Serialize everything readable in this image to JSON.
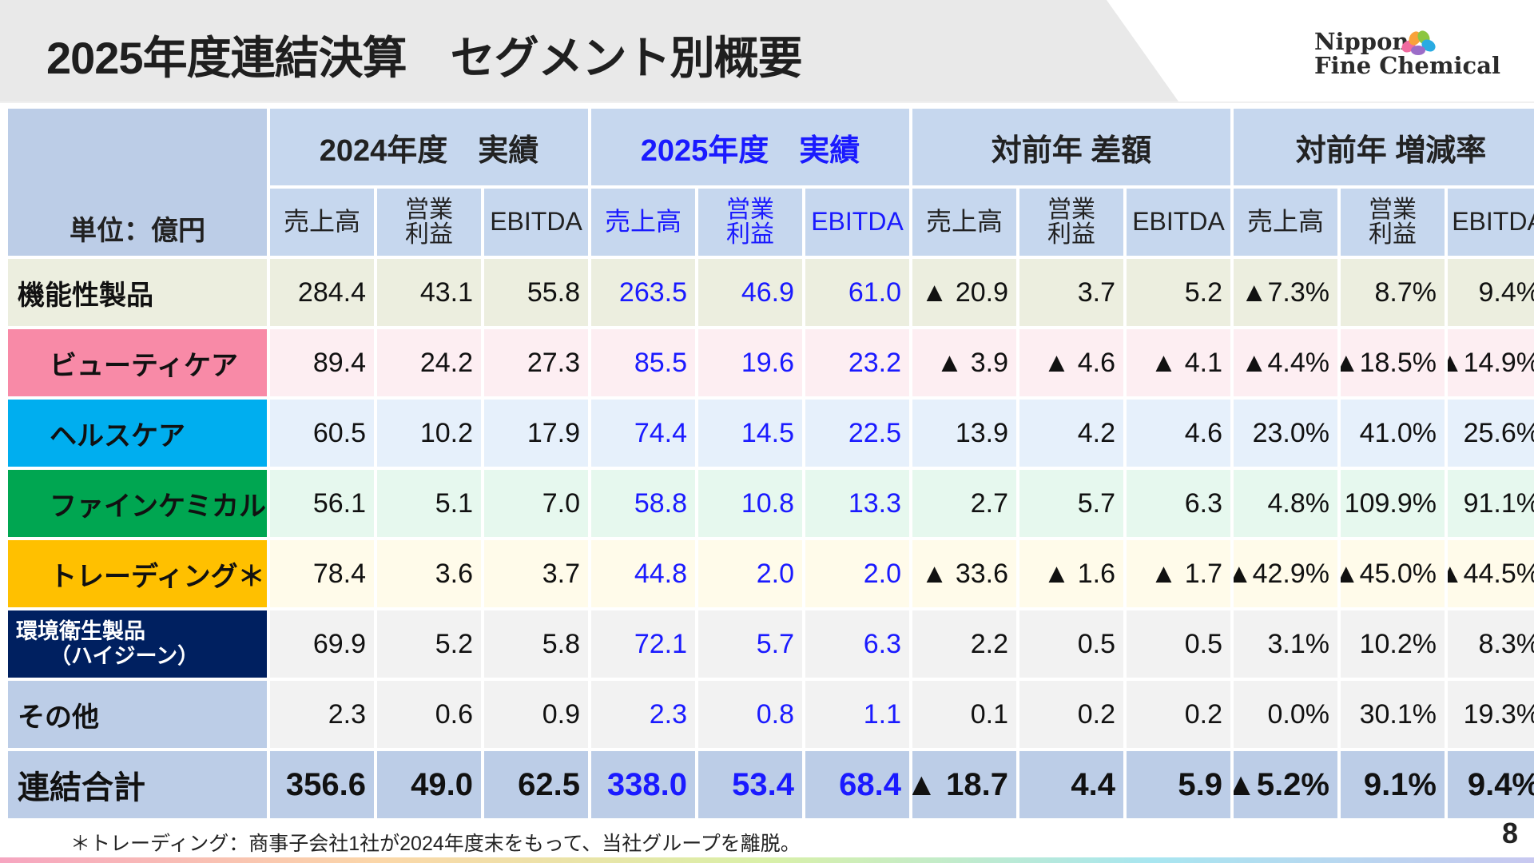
{
  "header": {
    "title": "2025年度連結決算　セグメント別概要",
    "logo_line1": "Nippon",
    "logo_line2": "Fine Chemical"
  },
  "table": {
    "unit_label": "単位：億円",
    "groups": [
      "2024年度　実績",
      "2025年度　実績",
      "対前年  差額",
      "対前年 増減率"
    ],
    "metrics": [
      "売上高",
      "営業\n利益",
      "EBITDA"
    ],
    "rows": [
      {
        "name": "機能性製品",
        "values": [
          "284.4",
          "43.1",
          "55.8",
          "263.5",
          "46.9",
          "61.0",
          "▲ 20.9",
          "3.7",
          "5.2",
          "▲7.3%",
          "8.7%",
          "9.4%"
        ]
      },
      {
        "name": "ビューティケア",
        "values": [
          "89.4",
          "24.2",
          "27.3",
          "85.5",
          "19.6",
          "23.2",
          "▲ 3.9",
          "▲ 4.6",
          "▲ 4.1",
          "▲4.4%",
          "▲18.5%",
          "▲14.9%"
        ]
      },
      {
        "name": "ヘルスケア",
        "values": [
          "60.5",
          "10.2",
          "17.9",
          "74.4",
          "14.5",
          "22.5",
          "13.9",
          "4.2",
          "4.6",
          "23.0%",
          "41.0%",
          "25.6%"
        ]
      },
      {
        "name": "ファインケミカル",
        "values": [
          "56.1",
          "5.1",
          "7.0",
          "58.8",
          "10.8",
          "13.3",
          "2.7",
          "5.7",
          "6.3",
          "4.8%",
          "109.9%",
          "91.1%"
        ]
      },
      {
        "name": "トレーディング＊",
        "values": [
          "78.4",
          "3.6",
          "3.7",
          "44.8",
          "2.0",
          "2.0",
          "▲ 33.6",
          "▲ 1.6",
          "▲ 1.7",
          "▲42.9%",
          "▲45.0%",
          "▲44.5%"
        ]
      },
      {
        "name": "環境衛生製品",
        "name_sub": "（ハイジーン）",
        "values": [
          "69.9",
          "5.2",
          "5.8",
          "72.1",
          "5.7",
          "6.3",
          "2.2",
          "0.5",
          "0.5",
          "3.1%",
          "10.2%",
          "8.3%"
        ]
      },
      {
        "name": "その他",
        "values": [
          "2.3",
          "0.6",
          "0.9",
          "2.3",
          "0.8",
          "1.1",
          "0.1",
          "0.2",
          "0.2",
          "0.0%",
          "30.1%",
          "19.3%"
        ]
      },
      {
        "name": "連結合計",
        "values": [
          "356.6",
          "49.0",
          "62.5",
          "338.0",
          "53.4",
          "68.4",
          "▲ 18.7",
          "4.4",
          "5.9",
          "▲5.2%",
          "9.1%",
          "9.4%"
        ]
      }
    ]
  },
  "colors": {
    "header_bg": "#c6d7ee",
    "row_label_bg": [
      "#eceedf",
      "#f88aa7",
      "#00aeef",
      "#00a651",
      "#ffc000",
      "#002060",
      "#bccde7",
      "#bccde7"
    ],
    "row_data_bg": [
      "#eceedf",
      "#fdeef2",
      "#e6f0fb",
      "#e6f8ee",
      "#fffbea",
      "#f2f2f2",
      "#f2f2f2",
      "#bccde7"
    ],
    "accent_blue": "#1a1aff"
  },
  "footnote": "＊トレーディング：商事子会社1社が2024年度末をもって、当社グループを離脱。",
  "page_number": "8"
}
